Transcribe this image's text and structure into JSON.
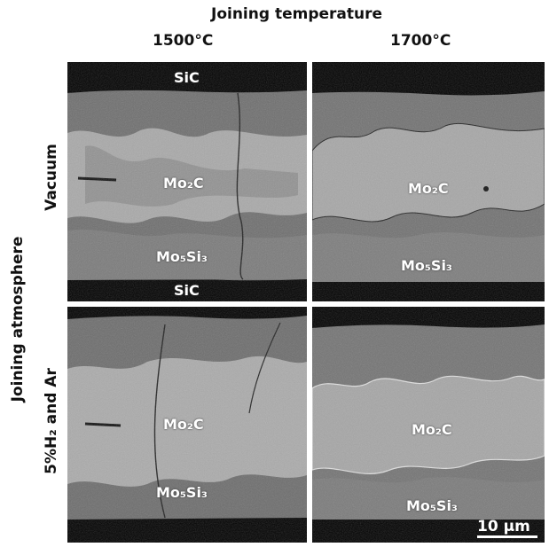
{
  "header": {
    "title": "Joining temperature",
    "col1": "1500°C",
    "col2": "1700°C"
  },
  "row_axis": {
    "title": "Joining atmosphere",
    "row1": "Vacuum",
    "row2": "5%H₂ and Ar"
  },
  "panels": {
    "p11": {
      "sic_top": "SiC",
      "mo2c": "Mo₂C",
      "mo5si3": "Mo₅Si₃",
      "sic_bottom": "SiC"
    },
    "p12": {
      "mo2c": "Mo₂C",
      "mo5si3": "Mo₅Si₃"
    },
    "p21": {
      "mo2c": "Mo₂C",
      "mo5si3": "Mo₅Si₃"
    },
    "p22": {
      "mo2c": "Mo₂C",
      "mo5si3": "Mo₅Si₃"
    }
  },
  "scale_bar": {
    "label": "10 μm"
  },
  "colors": {
    "background": "#000000",
    "matrix": "#6e6e6e",
    "mo2c": "#a8a8a8",
    "mo5si3": "#7a7a7a"
  }
}
